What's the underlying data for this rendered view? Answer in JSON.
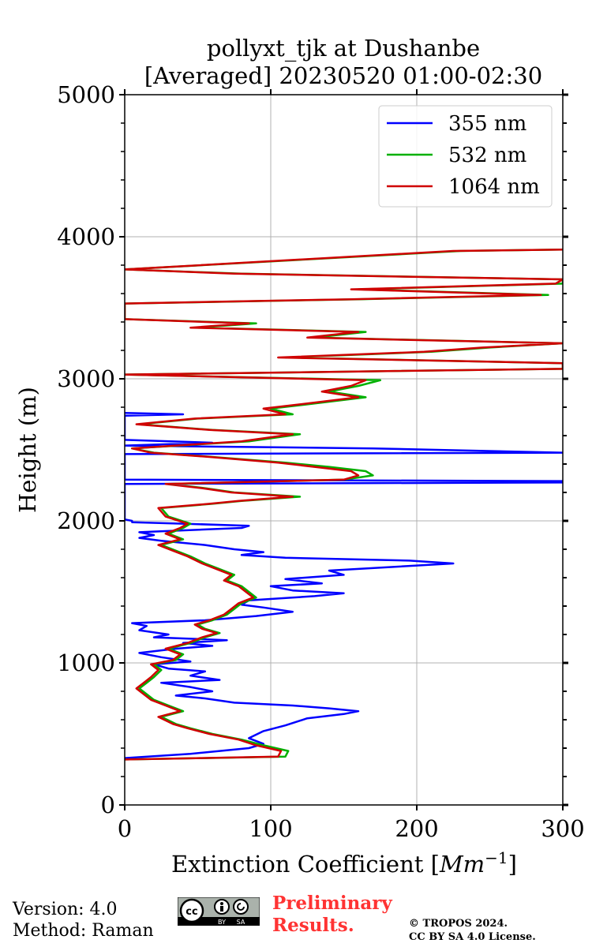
{
  "chart_data": {
    "type": "line",
    "title_line1": "pollyxt_tjk at Dushanbe",
    "title_line2": "[Averaged] 20230520 01:00-02:30",
    "xlabel_text": "Extinction Coefficient [",
    "xlabel_unit_base": "Mm",
    "xlabel_unit_exp": "−1",
    "xlabel_close": "]",
    "ylabel": "Height (m)",
    "xlim": [
      0,
      300
    ],
    "ylim": [
      0,
      5000
    ],
    "xticks": [
      0,
      100,
      200,
      300
    ],
    "xtick_labels": [
      "0",
      "100",
      "200",
      "300"
    ],
    "yticks": [
      0,
      1000,
      2000,
      3000,
      4000,
      5000
    ],
    "ytick_labels": [
      "0",
      "1000",
      "2000",
      "3000",
      "4000",
      "5000"
    ],
    "y_minor_step": 200,
    "grid": true,
    "legend_position": "top-right",
    "series": [
      {
        "name": "355 nm",
        "color": "#0000ff",
        "points": [
          [
            0,
            330
          ],
          [
            45,
            360
          ],
          [
            65,
            380
          ],
          [
            85,
            400
          ],
          [
            95,
            430
          ],
          [
            85,
            470
          ],
          [
            95,
            520
          ],
          [
            110,
            560
          ],
          [
            125,
            610
          ],
          [
            150,
            640
          ],
          [
            160,
            660
          ],
          [
            140,
            680
          ],
          [
            115,
            700
          ],
          [
            75,
            720
          ],
          [
            55,
            750
          ],
          [
            35,
            770
          ],
          [
            60,
            800
          ],
          [
            45,
            830
          ],
          [
            25,
            860
          ],
          [
            65,
            880
          ],
          [
            45,
            910
          ],
          [
            55,
            940
          ],
          [
            30,
            960
          ],
          [
            20,
            990
          ],
          [
            45,
            1010
          ],
          [
            25,
            1040
          ],
          [
            10,
            1070
          ],
          [
            35,
            1100
          ],
          [
            60,
            1120
          ],
          [
            40,
            1140
          ],
          [
            70,
            1160
          ],
          [
            20,
            1180
          ],
          [
            30,
            1200
          ],
          [
            10,
            1230
          ],
          [
            15,
            1260
          ],
          [
            5,
            1280
          ],
          [
            55,
            1300
          ],
          [
            90,
            1330
          ],
          [
            115,
            1360
          ],
          [
            95,
            1390
          ],
          [
            80,
            1410
          ],
          [
            85,
            1440
          ],
          [
            130,
            1470
          ],
          [
            150,
            1490
          ],
          [
            115,
            1510
          ],
          [
            100,
            1540
          ],
          [
            135,
            1560
          ],
          [
            110,
            1590
          ],
          [
            150,
            1620
          ],
          [
            140,
            1650
          ],
          [
            225,
            1700
          ],
          [
            195,
            1720
          ],
          [
            110,
            1740
          ],
          [
            80,
            1760
          ],
          [
            95,
            1780
          ],
          [
            75,
            1800
          ],
          [
            55,
            1830
          ],
          [
            25,
            1860
          ],
          [
            10,
            1880
          ],
          [
            20,
            1900
          ],
          [
            10,
            1920
          ],
          [
            80,
            1950
          ],
          [
            85,
            1965
          ],
          [
            40,
            1980
          ],
          [
            5,
            1990
          ],
          [
            5,
            2000
          ],
          [
            0,
            2010
          ],
          [
            0,
            2260
          ],
          [
            300,
            2270
          ],
          [
            300,
            2280
          ],
          [
            0,
            2290
          ],
          [
            0,
            2470
          ],
          [
            300,
            2480
          ],
          [
            170,
            2510
          ],
          [
            0,
            2530
          ],
          [
            60,
            2550
          ],
          [
            0,
            2570
          ],
          [
            0,
            2740
          ],
          [
            40,
            2750
          ],
          [
            0,
            2760
          ]
        ]
      },
      {
        "name": "532 nm",
        "color": "#00b000",
        "points": [
          [
            0,
            320
          ],
          [
            110,
            340
          ],
          [
            112,
            380
          ],
          [
            95,
            420
          ],
          [
            80,
            460
          ],
          [
            60,
            500
          ],
          [
            45,
            540
          ],
          [
            35,
            570
          ],
          [
            25,
            620
          ],
          [
            40,
            660
          ],
          [
            30,
            700
          ],
          [
            20,
            740
          ],
          [
            15,
            780
          ],
          [
            10,
            820
          ],
          [
            15,
            860
          ],
          [
            20,
            900
          ],
          [
            25,
            950
          ],
          [
            20,
            990
          ],
          [
            35,
            1020
          ],
          [
            40,
            1060
          ],
          [
            30,
            1100
          ],
          [
            45,
            1140
          ],
          [
            55,
            1180
          ],
          [
            65,
            1210
          ],
          [
            55,
            1240
          ],
          [
            50,
            1270
          ],
          [
            60,
            1300
          ],
          [
            70,
            1340
          ],
          [
            75,
            1380
          ],
          [
            80,
            1420
          ],
          [
            90,
            1460
          ],
          [
            85,
            1500
          ],
          [
            80,
            1540
          ],
          [
            70,
            1580
          ],
          [
            75,
            1620
          ],
          [
            65,
            1660
          ],
          [
            55,
            1700
          ],
          [
            45,
            1750
          ],
          [
            35,
            1790
          ],
          [
            25,
            1830
          ],
          [
            40,
            1870
          ],
          [
            30,
            1910
          ],
          [
            40,
            1950
          ],
          [
            45,
            1980
          ],
          [
            30,
            2030
          ],
          [
            25,
            2090
          ],
          [
            60,
            2120
          ],
          [
            80,
            2140
          ],
          [
            120,
            2170
          ],
          [
            75,
            2200
          ],
          [
            55,
            2230
          ],
          [
            30,
            2260
          ],
          [
            150,
            2290
          ],
          [
            170,
            2320
          ],
          [
            165,
            2350
          ],
          [
            140,
            2380
          ],
          [
            110,
            2410
          ],
          [
            60,
            2450
          ],
          [
            20,
            2480
          ],
          [
            5,
            2510
          ],
          [
            85,
            2560
          ],
          [
            120,
            2610
          ],
          [
            60,
            2640
          ],
          [
            10,
            2680
          ],
          [
            50,
            2720
          ],
          [
            115,
            2750
          ],
          [
            100,
            2790
          ],
          [
            125,
            2820
          ],
          [
            165,
            2870
          ],
          [
            140,
            2910
          ],
          [
            160,
            2950
          ],
          [
            175,
            2990
          ],
          [
            0,
            3030
          ],
          [
            300,
            3070
          ],
          [
            300,
            3110
          ],
          [
            110,
            3150
          ],
          [
            210,
            3190
          ],
          [
            250,
            3220
          ],
          [
            300,
            3250
          ],
          [
            130,
            3290
          ],
          [
            165,
            3330
          ],
          [
            50,
            3360
          ],
          [
            90,
            3390
          ],
          [
            0,
            3420
          ],
          [
            0,
            3530
          ],
          [
            160,
            3560
          ],
          [
            290,
            3590
          ],
          [
            160,
            3630
          ],
          [
            300,
            3670
          ],
          [
            300,
            3700
          ],
          [
            80,
            3740
          ],
          [
            0,
            3770
          ],
          [
            230,
            3900
          ],
          [
            300,
            3910
          ]
        ]
      },
      {
        "name": "1064 nm",
        "color": "#d00000",
        "points": [
          [
            0,
            320
          ],
          [
            105,
            340
          ],
          [
            107,
            380
          ],
          [
            90,
            420
          ],
          [
            78,
            460
          ],
          [
            58,
            500
          ],
          [
            43,
            540
          ],
          [
            33,
            570
          ],
          [
            23,
            620
          ],
          [
            38,
            660
          ],
          [
            28,
            700
          ],
          [
            18,
            740
          ],
          [
            13,
            780
          ],
          [
            8,
            820
          ],
          [
            13,
            860
          ],
          [
            18,
            900
          ],
          [
            23,
            950
          ],
          [
            18,
            990
          ],
          [
            33,
            1020
          ],
          [
            38,
            1060
          ],
          [
            28,
            1100
          ],
          [
            43,
            1140
          ],
          [
            53,
            1180
          ],
          [
            63,
            1210
          ],
          [
            53,
            1240
          ],
          [
            48,
            1270
          ],
          [
            58,
            1300
          ],
          [
            68,
            1340
          ],
          [
            73,
            1380
          ],
          [
            78,
            1420
          ],
          [
            88,
            1460
          ],
          [
            83,
            1500
          ],
          [
            78,
            1540
          ],
          [
            68,
            1580
          ],
          [
            73,
            1620
          ],
          [
            63,
            1660
          ],
          [
            53,
            1700
          ],
          [
            43,
            1750
          ],
          [
            33,
            1790
          ],
          [
            23,
            1830
          ],
          [
            38,
            1870
          ],
          [
            28,
            1910
          ],
          [
            38,
            1950
          ],
          [
            43,
            1980
          ],
          [
            28,
            2030
          ],
          [
            23,
            2090
          ],
          [
            58,
            2120
          ],
          [
            78,
            2140
          ],
          [
            115,
            2170
          ],
          [
            73,
            2200
          ],
          [
            53,
            2230
          ],
          [
            28,
            2260
          ],
          [
            150,
            2290
          ],
          [
            160,
            2320
          ],
          [
            155,
            2350
          ],
          [
            130,
            2380
          ],
          [
            105,
            2410
          ],
          [
            58,
            2450
          ],
          [
            18,
            2480
          ],
          [
            5,
            2510
          ],
          [
            80,
            2560
          ],
          [
            115,
            2610
          ],
          [
            58,
            2640
          ],
          [
            8,
            2680
          ],
          [
            48,
            2720
          ],
          [
            110,
            2750
          ],
          [
            95,
            2790
          ],
          [
            120,
            2820
          ],
          [
            160,
            2870
          ],
          [
            135,
            2910
          ],
          [
            155,
            2950
          ],
          [
            165,
            2990
          ],
          [
            0,
            3030
          ],
          [
            300,
            3070
          ],
          [
            300,
            3110
          ],
          [
            105,
            3150
          ],
          [
            205,
            3190
          ],
          [
            245,
            3220
          ],
          [
            300,
            3250
          ],
          [
            125,
            3290
          ],
          [
            160,
            3330
          ],
          [
            45,
            3360
          ],
          [
            85,
            3390
          ],
          [
            0,
            3420
          ],
          [
            0,
            3530
          ],
          [
            155,
            3560
          ],
          [
            285,
            3590
          ],
          [
            155,
            3630
          ],
          [
            295,
            3670
          ],
          [
            300,
            3700
          ],
          [
            75,
            3740
          ],
          [
            0,
            3770
          ],
          [
            225,
            3900
          ],
          [
            300,
            3910
          ]
        ]
      }
    ]
  },
  "footer": {
    "version": "Version: 4.0",
    "method": "Method: Raman",
    "preliminary_line1": "Preliminary",
    "preliminary_line2": "Results.",
    "copyright_line1": "© TROPOS 2024.",
    "copyright_line2": "CC BY SA 4.0 License.",
    "cc_badge": {
      "icon": "cc-by-sa-icon",
      "cc_text": "cc",
      "by_text": "BY",
      "sa_text": "SA"
    }
  }
}
